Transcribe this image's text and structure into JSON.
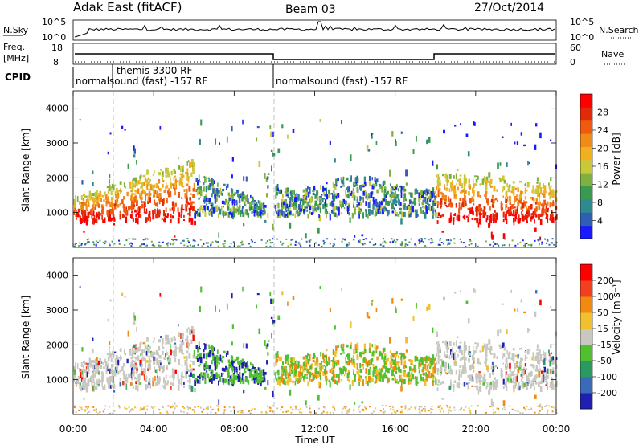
{
  "header": {
    "site": "Adak East (fitACF)",
    "beam": "Beam 03",
    "date": "27/Oct/2014"
  },
  "panels": {
    "nsky": {
      "label": "N.Sky",
      "ticks": [
        "10^5",
        "10^0"
      ],
      "right_label": "N.Search",
      "right_ticks": [
        "10^5",
        "10^0"
      ]
    },
    "freq": {
      "label_lines": [
        "Freq.",
        "[MHz]"
      ],
      "ticks": [
        "18",
        "8"
      ],
      "right_label": "Nave",
      "right_ticks": [
        "60",
        "0"
      ]
    },
    "cpid": {
      "label": "CPID",
      "segments": [
        "normalsound (fast) -157 RF",
        "themis 3300 RF",
        "normalsound (fast) -157 RF"
      ]
    }
  },
  "chart_data": [
    {
      "type": "heatmap",
      "name": "power",
      "ylabel": "Slant Range [km]",
      "ylim": [
        0,
        4500
      ],
      "yticks": [
        1000,
        2000,
        3000,
        4000
      ],
      "xlabel": "Time UT",
      "xticks": [
        "00:00",
        "04:00",
        "08:00",
        "12:00",
        "16:00",
        "20:00",
        "00:00"
      ],
      "xlim_hours": [
        0,
        24
      ],
      "colorbar": {
        "label": "Power [dB]",
        "ticks": [
          "4",
          "8",
          "12",
          "16",
          "20",
          "24",
          "28"
        ],
        "colors": [
          "#1a1aff",
          "#2e5fb5",
          "#2f8a8f",
          "#3a9a50",
          "#7fb040",
          "#c8c83a",
          "#f0b020",
          "#f08a18",
          "#f05a10",
          "#e02a0a",
          "#ff0000"
        ]
      }
    },
    {
      "type": "heatmap",
      "name": "velocity",
      "ylabel": "Slant Range [km]",
      "ylim": [
        0,
        4500
      ],
      "yticks": [
        1000,
        2000,
        3000,
        4000
      ],
      "xlabel": "Time UT",
      "xticks": [
        "00:00",
        "04:00",
        "08:00",
        "12:00",
        "16:00",
        "20:00",
        "00:00"
      ],
      "xlim_hours": [
        0,
        24
      ],
      "colorbar": {
        "label": "Velocity [m s⁻¹]",
        "ticks": [
          "200",
          "100",
          "50",
          "15",
          "-15",
          "-50",
          "-100",
          "-200"
        ],
        "colors": [
          "#2020b0",
          "#3a6ab8",
          "#2a9a60",
          "#50c030",
          "#c8c8c0",
          "#f0c030",
          "#f08a10",
          "#f04020",
          "#ff0000"
        ]
      }
    }
  ]
}
